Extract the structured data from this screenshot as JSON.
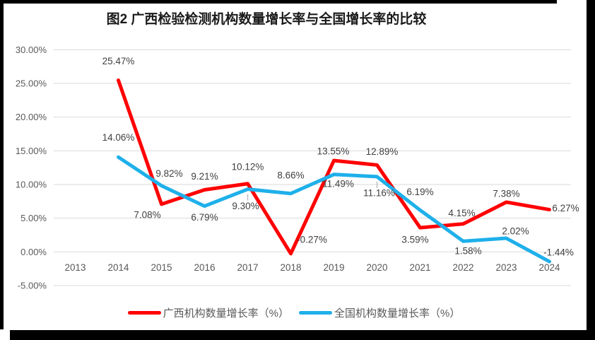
{
  "chart_data": {
    "type": "line",
    "title": "图2 广西检验检测机构数量增长率与全国增长率的比较",
    "categories": [
      "2013",
      "2014",
      "2015",
      "2016",
      "2017",
      "2018",
      "2019",
      "2020",
      "2021",
      "2022",
      "2023",
      "2024"
    ],
    "series": [
      {
        "name": "广西机构数量增长率（%）",
        "color": "#FF0000",
        "values": [
          null,
          25.47,
          7.08,
          9.21,
          10.12,
          -0.27,
          13.55,
          12.89,
          3.59,
          4.15,
          7.38,
          6.27
        ],
        "label_offsets": [
          null,
          [
            0,
            -27
          ],
          [
            -20,
            15
          ],
          [
            0,
            -19
          ],
          [
            0,
            -24
          ],
          [
            30,
            -20
          ],
          [
            -1,
            -13
          ],
          [
            7,
            -19
          ],
          [
            -7,
            17
          ],
          [
            -2,
            -15
          ],
          [
            0,
            -12
          ],
          [
            23,
            -2
          ]
        ]
      },
      {
        "name": "全国机构数量增长率（%）",
        "color": "#1EB0EA",
        "values": [
          null,
          14.06,
          9.82,
          6.79,
          9.3,
          8.66,
          11.49,
          11.16,
          6.19,
          1.58,
          2.02,
          -1.44
        ],
        "label_offsets": [
          null,
          [
            0,
            -28
          ],
          [
            11,
            -17
          ],
          [
            0,
            16
          ],
          [
            -3,
            24
          ],
          [
            0,
            -26
          ],
          [
            6,
            13
          ],
          [
            3,
            23
          ],
          [
            0,
            -26
          ],
          [
            7,
            14
          ],
          [
            13,
            -10
          ],
          [
            13,
            -13
          ]
        ]
      }
    ],
    "ylim": [
      -5,
      30
    ],
    "yticks": [
      30,
      25,
      20,
      15,
      10,
      5,
      0,
      -5
    ],
    "ytick_labels": [
      "30.00%",
      "25.00%",
      "20.00%",
      "15.00%",
      "10.00%",
      "5.00%",
      "0.00%",
      "-5.00%"
    ],
    "grid": true,
    "data_labels": true,
    "label_format": "0.00%",
    "legend_position": "bottom",
    "leader_lines": [
      {
        "series": 1,
        "index": 4
      },
      {
        "series": 1,
        "index": 7
      }
    ],
    "styles": {
      "grid_color": "#D9D9D9",
      "axis_text_color": "#595959",
      "label_text_color": "#404040",
      "leader_color": "#BFBFBF",
      "background": "#FFFFFF",
      "frame_color": "#000000"
    }
  }
}
